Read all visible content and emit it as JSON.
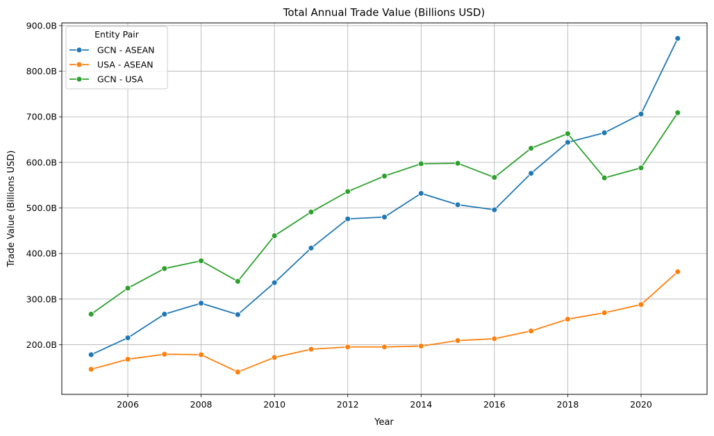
{
  "chart_data": {
    "type": "line",
    "title": "Total Annual Trade Value (Billions USD)",
    "xlabel": "Year",
    "ylabel": "Trade Value (Billions USD)",
    "xlim": [
      2004.2,
      2021.8
    ],
    "ylim": [
      91,
      906
    ],
    "x_ticks": [
      2006,
      2008,
      2010,
      2012,
      2014,
      2016,
      2018,
      2020
    ],
    "x_tick_labels": [
      "2006",
      "2008",
      "2010",
      "2012",
      "2014",
      "2016",
      "2018",
      "2020"
    ],
    "y_ticks": [
      200,
      300,
      400,
      500,
      600,
      700,
      800,
      900
    ],
    "y_tick_labels": [
      "200.0B",
      "300.0B",
      "400.0B",
      "500.0B",
      "600.0B",
      "700.0B",
      "800.0B",
      "900.0B"
    ],
    "grid": true,
    "legend": {
      "title": "Entity Pair",
      "placement": "top-left"
    },
    "x": [
      2005,
      2006,
      2007,
      2008,
      2009,
      2010,
      2011,
      2012,
      2013,
      2014,
      2015,
      2016,
      2017,
      2018,
      2019,
      2020,
      2021
    ],
    "series": [
      {
        "name": "GCN - ASEAN",
        "color": "#1f77b4",
        "values": [
          178,
          215,
          267,
          291,
          266,
          336,
          412,
          476,
          480,
          532,
          507,
          496,
          576,
          644,
          665,
          706,
          872
        ]
      },
      {
        "name": "USA - ASEAN",
        "color": "#ff7f0e",
        "values": [
          146,
          168,
          179,
          178,
          140,
          172,
          190,
          195,
          195,
          197,
          209,
          213,
          230,
          256,
          270,
          288,
          360
        ]
      },
      {
        "name": "GCN - USA",
        "color": "#2ca02c",
        "values": [
          267,
          324,
          367,
          384,
          339,
          439,
          491,
          536,
          570,
          597,
          598,
          567,
          631,
          663,
          566,
          588,
          709
        ]
      }
    ]
  }
}
